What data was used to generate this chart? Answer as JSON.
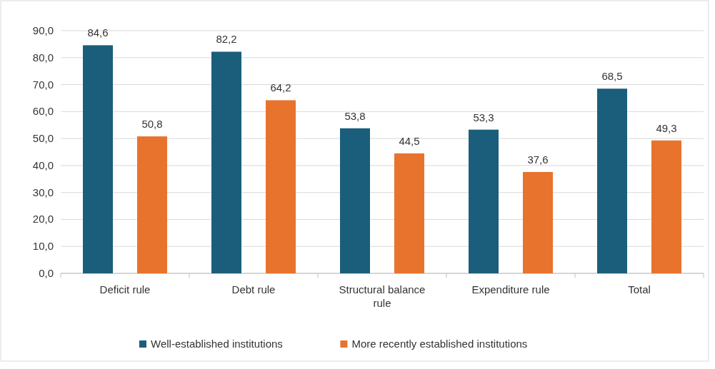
{
  "chart_data": {
    "type": "bar",
    "categories": [
      "Deficit rule",
      "Debt rule",
      "Structural balance rule",
      "Expenditure rule",
      "Total"
    ],
    "series": [
      {
        "name": "Well-established institutions",
        "color": "#1b5e7b",
        "values": [
          84.6,
          82.2,
          53.8,
          53.3,
          68.5
        ],
        "value_labels": [
          "84,6",
          "82,2",
          "53,8",
          "53,3",
          "68,5"
        ]
      },
      {
        "name": "More recently established institutions",
        "color": "#e8732d",
        "values": [
          50.8,
          64.2,
          44.5,
          37.6,
          49.3
        ],
        "value_labels": [
          "50,8",
          "64,2",
          "44,5",
          "37,6",
          "49,3"
        ]
      }
    ],
    "ylim": [
      0,
      90
    ],
    "yticks": [
      {
        "value": 0,
        "label": "0,0"
      },
      {
        "value": 10,
        "label": "10,0"
      },
      {
        "value": 20,
        "label": "20,0"
      },
      {
        "value": 30,
        "label": "30,0"
      },
      {
        "value": 40,
        "label": "40,0"
      },
      {
        "value": 50,
        "label": "50,0"
      },
      {
        "value": 60,
        "label": "60,0"
      },
      {
        "value": 70,
        "label": "70,0"
      },
      {
        "value": 80,
        "label": "80,0"
      },
      {
        "value": 90,
        "label": "90,0"
      }
    ],
    "grid": "y",
    "legend": "bottom"
  }
}
